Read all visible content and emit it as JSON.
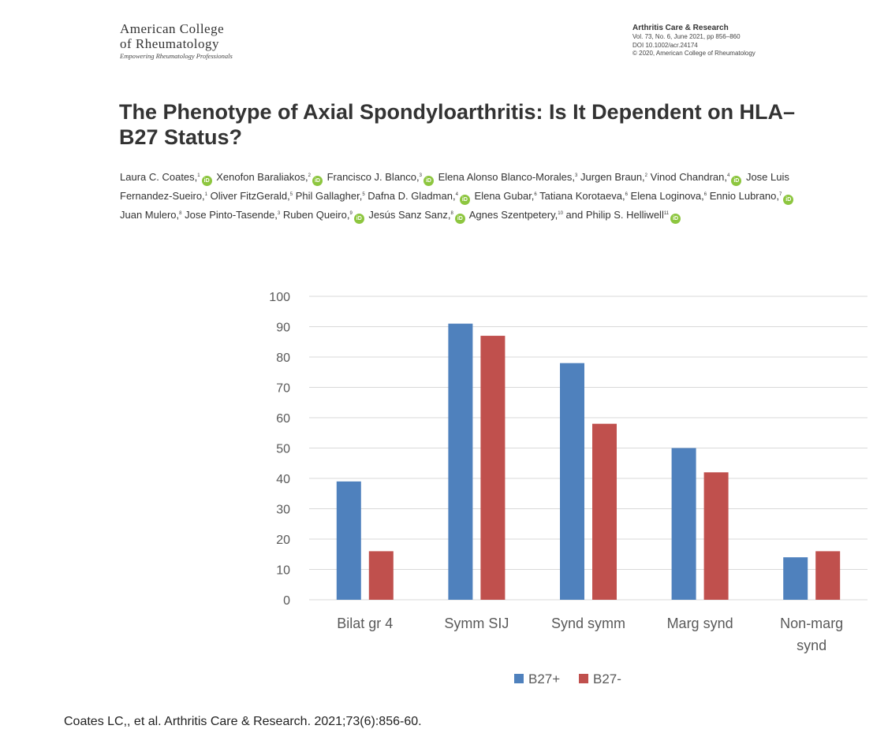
{
  "logo": {
    "line1": "American College",
    "line2": "of Rheumatology",
    "tagline": "Empowering Rheumatology Professionals"
  },
  "journal": {
    "name": "Arthritis Care & Research",
    "volume": "Vol. 73, No. 6, June 2021, pp 856–860",
    "doi": "DOI 10.1002/acr.24174",
    "copyright": "© 2020, American College of Rheumatology"
  },
  "paper": {
    "title": "The Phenotype of Axial Spondyloarthritis: Is It Dependent on HLA–B27 Status?",
    "authors": [
      {
        "name": "Laura C. Coates,",
        "sup": "1",
        "orcid": true
      },
      {
        "name": "Xenofon Baraliakos,",
        "sup": "2",
        "orcid": true
      },
      {
        "name": "Francisco J. Blanco,",
        "sup": "3",
        "orcid": true
      },
      {
        "name": "Elena Alonso Blanco-Morales,",
        "sup": "3",
        "orcid": false
      },
      {
        "name": "Jurgen Braun,",
        "sup": "2",
        "orcid": false
      },
      {
        "name": "Vinod Chandran,",
        "sup": "4",
        "orcid": true
      },
      {
        "name": "Jose Luis Fernandez-Sueiro,",
        "sup": "1",
        "orcid": false
      },
      {
        "name": "Oliver FitzGerald,",
        "sup": "5",
        "orcid": false
      },
      {
        "name": "Phil Gallagher,",
        "sup": "5",
        "orcid": false
      },
      {
        "name": "Dafna D. Gladman,",
        "sup": "4",
        "orcid": true
      },
      {
        "name": "Elena Gubar,",
        "sup": "6",
        "orcid": false
      },
      {
        "name": "Tatiana Korotaeva,",
        "sup": "6",
        "orcid": false
      },
      {
        "name": "Elena Loginova,",
        "sup": "6",
        "orcid": false
      },
      {
        "name": "Ennio Lubrano,",
        "sup": "7",
        "orcid": true
      },
      {
        "name": "Juan Mulero,",
        "sup": "8",
        "orcid": false
      },
      {
        "name": "Jose Pinto-Tasende,",
        "sup": "3",
        "orcid": false
      },
      {
        "name": "Ruben Queiro,",
        "sup": "9",
        "orcid": true
      },
      {
        "name": "Jesús Sanz Sanz,",
        "sup": "8",
        "orcid": true
      },
      {
        "name": "Agnes Szentpetery,",
        "sup": "10",
        "orcid": false
      },
      {
        "name": "and Philip S. Helliwell",
        "sup": "11",
        "orcid": true
      }
    ],
    "orcid_icon": "iD"
  },
  "chart_data": {
    "type": "bar",
    "categories": [
      "Bilat gr 4",
      "Symm SIJ",
      "Synd symm",
      "Marg synd",
      "Non-marg synd"
    ],
    "category_lines": [
      [
        "Bilat gr 4"
      ],
      [
        "Symm SIJ"
      ],
      [
        "Synd symm"
      ],
      [
        "Marg synd"
      ],
      [
        "Non-marg",
        "synd"
      ]
    ],
    "series": [
      {
        "name": "B27+",
        "values": [
          39,
          91,
          78,
          50,
          14
        ],
        "color": "#4f81bd"
      },
      {
        "name": "B27-",
        "values": [
          16,
          87,
          58,
          42,
          16
        ],
        "color": "#c0504d"
      }
    ],
    "ylim": [
      0,
      100
    ],
    "yticks": [
      0,
      10,
      20,
      30,
      40,
      50,
      60,
      70,
      80,
      90,
      100
    ],
    "grid": true,
    "legend": "bottom"
  },
  "citation": "Coates LC,, et al. Arthritis  Care & Research. 2021;73(6):856-60."
}
